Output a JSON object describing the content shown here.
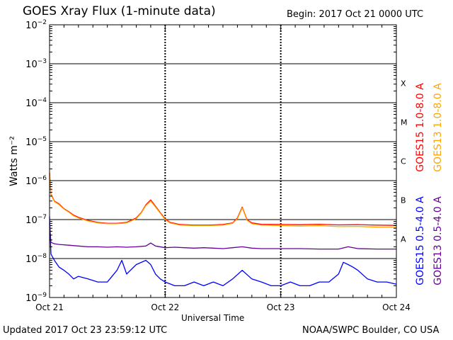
{
  "header": {
    "title": "GOES Xray Flux (1-minute data)",
    "begin": "Begin:  2017 Oct 21 0000 UTC"
  },
  "footer": {
    "updated": "Updated 2017 Oct 23 23:59:12 UTC",
    "credit": "NOAA/SWPC Boulder, CO USA"
  },
  "chart_data": {
    "type": "line",
    "title": "GOES Xray Flux (1-minute data)",
    "xlabel": "Universal Time",
    "ylabel": "Watts m⁻²",
    "yscale": "log",
    "ylim": [
      1e-09,
      0.01
    ],
    "xlim": [
      0,
      72
    ],
    "x_unit": "hours since 2017 Oct 21 0000 UTC",
    "x_ticks": [
      {
        "x": 0,
        "label": "Oct 21"
      },
      {
        "x": 24,
        "label": "Oct 22"
      },
      {
        "x": 48,
        "label": "Oct 23"
      },
      {
        "x": 72,
        "label": "Oct 24"
      }
    ],
    "y_ticks": [
      {
        "exp": -9,
        "label": "10"
      },
      {
        "exp": -8,
        "label": "10"
      },
      {
        "exp": -7,
        "label": "10"
      },
      {
        "exp": -6,
        "label": "10"
      },
      {
        "exp": -5,
        "label": "10"
      },
      {
        "exp": -4,
        "label": "10"
      },
      {
        "exp": -3,
        "label": "10"
      },
      {
        "exp": -2,
        "label": "10"
      }
    ],
    "flare_classes": [
      {
        "label": "A",
        "exp": -8
      },
      {
        "label": "B",
        "exp": -7
      },
      {
        "label": "C",
        "exp": -6
      },
      {
        "label": "M",
        "exp": -5
      },
      {
        "label": "X",
        "exp": -4
      }
    ],
    "grid": true,
    "legend_position": "right, vertical",
    "series": [
      {
        "name": "GOES15 1.0-8.0 A",
        "color": "#ff0000",
        "x": [
          0,
          0.3,
          1,
          2,
          3,
          4,
          5,
          6,
          8,
          10,
          12,
          14,
          16,
          18,
          19,
          20,
          21,
          22,
          23,
          24,
          25,
          27,
          30,
          33,
          36,
          38,
          39,
          40,
          41,
          42,
          44,
          48,
          52,
          56,
          60,
          64,
          68,
          72
        ],
        "y": [
          1.6e-06,
          4.5e-07,
          3e-07,
          2.5e-07,
          1.9e-07,
          1.6e-07,
          1.3e-07,
          1.15e-07,
          9.5e-08,
          8.5e-08,
          8e-08,
          8e-08,
          8.5e-08,
          1.1e-07,
          1.5e-07,
          2.4e-07,
          3.2e-07,
          2.2e-07,
          1.5e-07,
          1.05e-07,
          8.5e-08,
          7.5e-08,
          7.2e-08,
          7.2e-08,
          7.5e-08,
          8.2e-08,
          1.1e-07,
          2.1e-07,
          1e-07,
          8.2e-08,
          7.6e-08,
          7.5e-08,
          7.4e-08,
          7.6e-08,
          7.3e-08,
          7.4e-08,
          7.2e-08,
          7.1e-08
        ]
      },
      {
        "name": "GOES13 1.0-8.0 A",
        "color": "#ffa500",
        "x": [
          0,
          0.3,
          1,
          2,
          3,
          4,
          5,
          6,
          8,
          10,
          12,
          14,
          16,
          18,
          19,
          20,
          21,
          22,
          23,
          24,
          25,
          27,
          30,
          33,
          36,
          38,
          39,
          40,
          41,
          42,
          44,
          48,
          52,
          56,
          60,
          64,
          68,
          72
        ],
        "y": [
          1.5e-06,
          4.3e-07,
          2.9e-07,
          2.4e-07,
          1.85e-07,
          1.55e-07,
          1.25e-07,
          1.1e-07,
          9.2e-08,
          8.2e-08,
          7.8e-08,
          7.8e-08,
          8.2e-08,
          1.05e-07,
          1.45e-07,
          2.3e-07,
          3e-07,
          2.1e-07,
          1.45e-07,
          1e-07,
          8.2e-08,
          7.2e-08,
          7e-08,
          7e-08,
          7.2e-08,
          8e-08,
          1.05e-07,
          2e-07,
          9.6e-08,
          7.8e-08,
          7.2e-08,
          7e-08,
          6.8e-08,
          7e-08,
          6.6e-08,
          6.7e-08,
          6.4e-08,
          6.3e-08
        ]
      },
      {
        "name": "GOES15 0.5-4.0 A",
        "color": "#0000ff",
        "x": [
          0,
          0.3,
          1,
          2,
          3,
          4,
          5,
          6,
          8,
          10,
          12,
          14,
          15,
          16,
          18,
          20,
          21,
          22,
          23,
          24,
          26,
          28,
          30,
          32,
          34,
          36,
          38,
          40,
          42,
          44,
          46,
          48,
          50,
          52,
          54,
          56,
          58,
          60,
          61,
          62,
          63,
          64,
          66,
          68,
          70,
          72
        ],
        "y": [
          1.2e-07,
          1.3e-08,
          9e-09,
          6e-09,
          5e-09,
          4e-09,
          3e-09,
          3.5e-09,
          3e-09,
          2.5e-09,
          2.5e-09,
          5e-09,
          9e-09,
          4e-09,
          7e-09,
          9e-09,
          7e-09,
          4e-09,
          3e-09,
          2.5e-09,
          2e-09,
          2e-09,
          2.5e-09,
          2e-09,
          2.5e-09,
          2e-09,
          3e-09,
          5e-09,
          3e-09,
          2.5e-09,
          2e-09,
          2e-09,
          2.5e-09,
          2e-09,
          2e-09,
          2.5e-09,
          2.5e-09,
          4e-09,
          8e-09,
          7e-09,
          6e-09,
          5e-09,
          3e-09,
          2.5e-09,
          2.5e-09,
          2.2e-09
        ]
      },
      {
        "name": "GOES13 0.5-4.0 A",
        "color": "#660099",
        "x": [
          0,
          0.3,
          1,
          2,
          4,
          6,
          8,
          10,
          12,
          14,
          16,
          18,
          20,
          21,
          22,
          24,
          26,
          28,
          30,
          32,
          34,
          36,
          38,
          40,
          42,
          44,
          48,
          52,
          56,
          60,
          62,
          64,
          68,
          72
        ],
        "y": [
          8e-08,
          2.6e-08,
          2.4e-08,
          2.3e-08,
          2.2e-08,
          2.1e-08,
          2e-08,
          2e-08,
          1.95e-08,
          2e-08,
          1.95e-08,
          2e-08,
          2.1e-08,
          2.5e-08,
          2.1e-08,
          1.9e-08,
          1.95e-08,
          1.9e-08,
          1.85e-08,
          1.9e-08,
          1.85e-08,
          1.8e-08,
          1.9e-08,
          2e-08,
          1.85e-08,
          1.8e-08,
          1.8e-08,
          1.8e-08,
          1.75e-08,
          1.75e-08,
          2e-08,
          1.8e-08,
          1.75e-08,
          1.75e-08
        ]
      }
    ]
  }
}
